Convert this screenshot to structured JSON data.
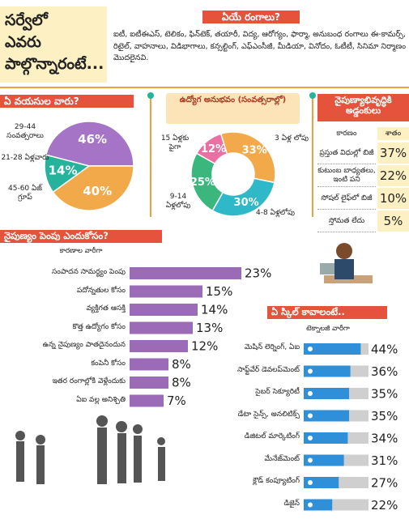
{
  "header": {
    "title": [
      "సర్వేలో",
      "ఎవరు",
      "పాల్గొన్నారంటే..."
    ]
  },
  "industries": {
    "title": "ఏయే రంగాలు?",
    "text": "ఐటీ, ఐటీఈఎస్, టెలికం, ఫిన్‌టెక్, తయారీ, విద్య, ఆరోగ్యం, ఫార్మా, అనుబంధ రంగాలు ఈ-కామర్స్, రిటైల్, వాహనాలు, విడిభాగాలు, కన్సల్టింగ్, ఎఫ్‌ఎంసీజీ, మీడియా, వినోదం, ఓటీటీ, సినిమా నిర్మాణం మొదలైనవి."
  },
  "chart_data": [
    {
      "type": "pie",
      "title": "ఏ వయసుల వారు?",
      "categories": [
        "29-44 సంవత్సరాలు",
        "21-28 ఏళ్లవారు",
        "45-60 ఏజ్ గ్రూప్"
      ],
      "values": [
        46,
        14,
        40
      ],
      "value_labels": [
        "46%",
        "14%",
        "40%"
      ],
      "colors": [
        "#a574c6",
        "#25b39c",
        "#f2a94a"
      ]
    },
    {
      "type": "donut",
      "title": "ఉద్యోగ అనుభవం (సంవత్సరాల్లో)",
      "categories": [
        "3 ఏళ్ల లోపు",
        "4-8 ఏళ్లలోపు",
        "9-14 ఏళ్లలోపు",
        "15 ఏళ్లకు పైగా"
      ],
      "values": [
        33,
        30,
        25,
        12
      ],
      "value_labels": [
        "33%",
        "30%",
        "25%",
        "12%"
      ],
      "colors": [
        "#f2a94a",
        "#2fb8c8",
        "#3bb77e",
        "#ea6fa3"
      ]
    },
    {
      "type": "bar",
      "title": "నైపుణ్యం పెంపు ఎందుకోసం?",
      "subtitle": "కారణాల వారీగా",
      "categories": [
        "సంపాదన సామర్థ్యం పెంపు",
        "పదోన్నతుల కోసం",
        "వ్యక్తిగత ఆసక్తి",
        "కొత్త ఉద్యోగం కోసం",
        "ఉన్న నైపుణ్యం పాతదైనందున",
        "కంపెనీ కోసం",
        "ఇతర రంగాల్లోకి వెళ్లేందుకు",
        "ఏఐ వల్ల అనిశ్చితి"
      ],
      "values": [
        23,
        15,
        14,
        13,
        12,
        8,
        8,
        7
      ],
      "value_labels": [
        "23%",
        "15%",
        "14%",
        "13%",
        "12%",
        "8%",
        "8%",
        "7%"
      ],
      "color": "#9b6bb8",
      "xlim": [
        0,
        25
      ]
    },
    {
      "type": "track-bar",
      "title": "ఏ స్కిల్ కావాలంటే..",
      "subtitle": "టెక్నాలజీ వారీగా",
      "categories": [
        "మెషిన్ లెర్నింగ్, ఏఐ",
        "సాఫ్ట్‌వేర్ డెవలప్‌మెంట్",
        "సైబర్ సెక్యూరిటీ",
        "డేటా సైన్స్, అనలిటిక్స్",
        "డిజిటల్ మార్కెటింగ్",
        "మేనేజ్‌మెంట్",
        "క్లౌడ్ కంప్యూటింగ్",
        "డిజైన్"
      ],
      "values": [
        44,
        36,
        35,
        35,
        34,
        31,
        27,
        22
      ],
      "value_labels": [
        "44%",
        "36%",
        "35%",
        "35%",
        "34%",
        "31%",
        "27%",
        "22%"
      ],
      "color": "#2f8fd8",
      "track_color": "#cfcfcf",
      "xlim": [
        0,
        50
      ]
    }
  ],
  "table": {
    "title": "నైపుణ్యాభివృద్ధికి అడ్డంకులు",
    "columns": [
      "కారణం",
      "శాతం"
    ],
    "rows": [
      [
        "ప్రస్తుత విధుల్లో బిజీ",
        "37%"
      ],
      [
        "కుటుంబ బాధ్యతలు, ఇంటి పని",
        "22%"
      ],
      [
        "సోషల్ లైఫ్‌లో బిజీ",
        "10%"
      ],
      [
        "స్తోమత లేదు",
        "5%"
      ]
    ]
  }
}
